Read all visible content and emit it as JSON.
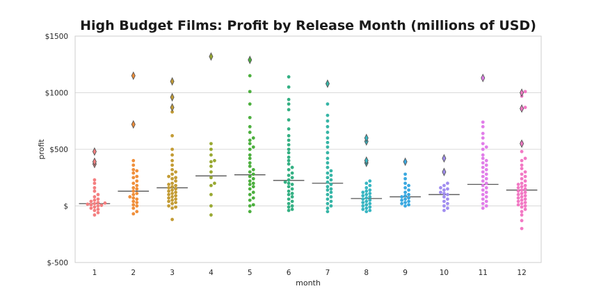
{
  "chart_data": {
    "type": "scatter",
    "subtype": "swarm-with-median",
    "title": "High Budget Films: Profit by Release Month (millions of USD)",
    "xlabel": "month",
    "ylabel": "profit",
    "categories": [
      "1",
      "2",
      "3",
      "4",
      "5",
      "6",
      "7",
      "8",
      "9",
      "10",
      "11",
      "12"
    ],
    "ylim": [
      -500,
      1500
    ],
    "yticks": [
      -500,
      0,
      500,
      1000,
      1500
    ],
    "ytick_labels": [
      "$-500",
      "$",
      "$500",
      "$1000",
      "$1500"
    ],
    "grid": "horizontal",
    "median_color": "#555555",
    "outlier_color": "#555555",
    "series": [
      {
        "month": "1",
        "color": "#f47f80",
        "median": 20,
        "points": [
          -80,
          -60,
          -40,
          -30,
          -20,
          -10,
          0,
          5,
          10,
          15,
          20,
          25,
          30,
          40,
          50,
          60,
          80,
          100,
          130,
          160,
          200,
          230
        ],
        "outliers": [
          370,
          390,
          480
        ]
      },
      {
        "month": "2",
        "color": "#f08f3a",
        "median": 130,
        "points": [
          -70,
          -50,
          -20,
          0,
          10,
          30,
          40,
          60,
          70,
          80,
          100,
          110,
          130,
          150,
          160,
          180,
          200,
          220,
          250,
          260,
          290,
          310,
          320,
          360,
          400
        ],
        "outliers": [
          720,
          1150
        ]
      },
      {
        "month": "3",
        "color": "#c39c35",
        "median": 160,
        "points": [
          -120,
          -20,
          -10,
          0,
          20,
          30,
          40,
          50,
          60,
          70,
          80,
          90,
          100,
          110,
          120,
          130,
          140,
          150,
          160,
          170,
          180,
          190,
          200,
          220,
          240,
          250,
          260,
          280,
          300,
          320,
          360,
          400,
          450,
          500,
          620,
          830
        ],
        "outliers": [
          870,
          960,
          1100
        ]
      },
      {
        "month": "4",
        "color": "#99a933",
        "median": 265,
        "points": [
          -80,
          0,
          100,
          180,
          200,
          250,
          300,
          350,
          390,
          400,
          450,
          500,
          550
        ],
        "outliers": [
          1320
        ]
      },
      {
        "month": "5",
        "color": "#4caf3e",
        "median": 275,
        "points": [
          -50,
          0,
          10,
          50,
          70,
          100,
          120,
          150,
          170,
          190,
          200,
          220,
          240,
          260,
          280,
          300,
          320,
          350,
          380,
          420,
          450,
          500,
          520,
          550,
          580,
          600,
          650,
          700,
          780,
          900,
          1010,
          1150
        ],
        "outliers": [
          1290
        ]
      },
      {
        "month": "6",
        "color": "#34b083",
        "median": 225,
        "points": [
          -40,
          -30,
          -10,
          0,
          20,
          40,
          60,
          80,
          100,
          110,
          130,
          150,
          170,
          190,
          200,
          210,
          230,
          250,
          270,
          290,
          320,
          340,
          370,
          400,
          430,
          470,
          500,
          540,
          580,
          620,
          680,
          760,
          850,
          900,
          940,
          1050,
          1140
        ],
        "outliers": []
      },
      {
        "month": "7",
        "color": "#36b5a6",
        "median": 200,
        "points": [
          -50,
          -20,
          0,
          20,
          40,
          60,
          80,
          100,
          120,
          140,
          150,
          170,
          190,
          210,
          230,
          250,
          270,
          290,
          310,
          340,
          380,
          420,
          470,
          520,
          560,
          600,
          650,
          700,
          750,
          800,
          900
        ],
        "outliers": [
          1080
        ]
      },
      {
        "month": "8",
        "color": "#38b6c2",
        "median": 65,
        "points": [
          -50,
          -40,
          -30,
          -20,
          -10,
          0,
          10,
          20,
          30,
          40,
          50,
          60,
          70,
          80,
          90,
          100,
          110,
          120,
          130,
          140,
          160,
          180,
          200,
          220
        ],
        "outliers": [
          380,
          400,
          570,
          600
        ]
      },
      {
        "month": "9",
        "color": "#3aa8e0",
        "median": 80,
        "points": [
          0,
          10,
          20,
          30,
          40,
          50,
          60,
          70,
          80,
          90,
          100,
          120,
          140,
          160,
          180,
          200,
          240,
          280
        ],
        "outliers": [
          390
        ]
      },
      {
        "month": "10",
        "color": "#a18ef0",
        "median": 100,
        "points": [
          -40,
          -20,
          0,
          20,
          40,
          60,
          80,
          100,
          110,
          120,
          140,
          150,
          160,
          180,
          200
        ],
        "outliers": [
          300,
          420
        ]
      },
      {
        "month": "11",
        "color": "#e17ee9",
        "median": 190,
        "points": [
          -20,
          0,
          20,
          40,
          60,
          80,
          100,
          120,
          140,
          160,
          180,
          200,
          220,
          240,
          260,
          280,
          300,
          320,
          340,
          360,
          380,
          400,
          420,
          450,
          500,
          520,
          550,
          600,
          640,
          700,
          740
        ],
        "outliers": [
          1130
        ]
      },
      {
        "month": "12",
        "color": "#f279c4",
        "median": 140,
        "points": [
          -200,
          -130,
          -80,
          -50,
          -30,
          -10,
          0,
          10,
          20,
          30,
          40,
          50,
          60,
          70,
          80,
          90,
          100,
          110,
          120,
          130,
          140,
          150,
          160,
          170,
          180,
          190,
          200,
          220,
          240,
          260,
          280,
          300,
          330,
          360,
          400,
          420,
          480,
          560,
          860,
          870,
          970,
          1000,
          1010
        ],
        "outliers": [
          550,
          860,
          1000
        ]
      }
    ]
  }
}
